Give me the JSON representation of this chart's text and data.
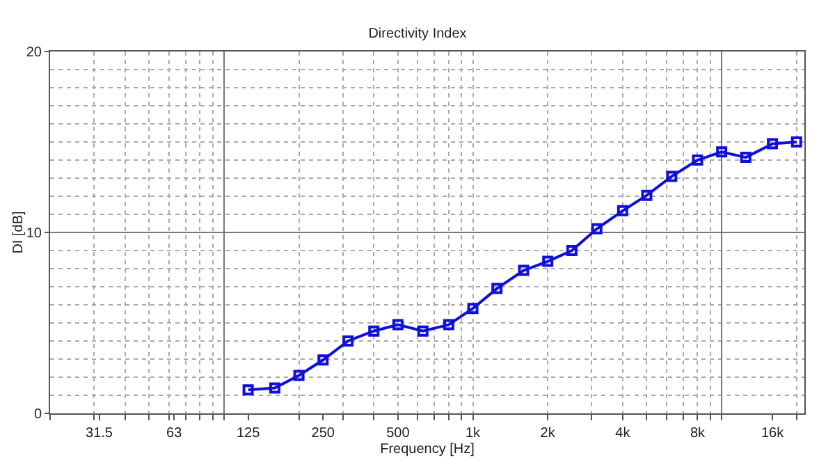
{
  "chart_data": {
    "type": "line",
    "title": "Directivity Index",
    "xlabel": "Frequency [Hz]",
    "ylabel": "DI [dB]",
    "log": "x",
    "x": [
      125,
      160,
      200,
      250,
      315,
      400,
      500,
      630,
      800,
      1000,
      1250,
      1600,
      2000,
      2500,
      3150,
      4000,
      5000,
      6300,
      8000,
      10000,
      12500,
      16000,
      20000
    ],
    "series": [
      {
        "color": "#1010d8",
        "values": [
          1.3,
          1.4,
          2.1,
          2.95,
          4.0,
          4.55,
          4.9,
          4.55,
          4.9,
          5.8,
          6.9,
          7.9,
          8.4,
          9.0,
          10.2,
          11.2,
          12.05,
          13.1,
          14.0,
          14.45,
          14.15,
          14.9,
          15.0
        ]
      }
    ],
    "xlim": [
      20,
      21500
    ],
    "ylim": [
      0,
      20
    ],
    "xticks": [
      {
        "value": 31.5,
        "label": "31.5"
      },
      63,
      125,
      250,
      500,
      {
        "value": 1000,
        "label": "1k"
      },
      {
        "value": 2000,
        "label": "2k"
      },
      {
        "value": 4000,
        "label": "4k"
      },
      {
        "value": 8000,
        "label": "8k"
      },
      {
        "value": 16000,
        "label": "16k"
      },
      {
        "value": 100,
        "label": null
      },
      {
        "value": 10000,
        "label": null
      }
    ],
    "yticks": [
      0,
      10,
      20
    ],
    "grid": true,
    "marker": "square",
    "line_style": "solid"
  }
}
